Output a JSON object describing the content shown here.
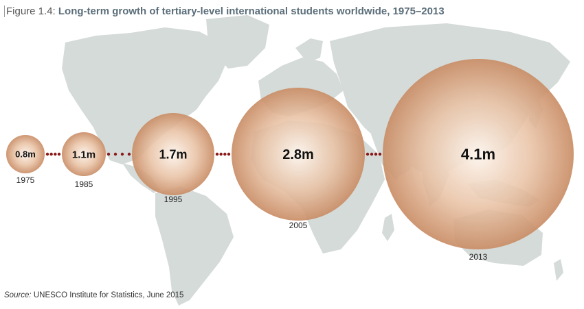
{
  "figure": {
    "label": "Figure 1.4: ",
    "title": "Long-term growth of tertiary-level international students worldwide, 1975–2013"
  },
  "source": {
    "label": "Source:",
    "text": " UNESCO Institute for Statistics, June 2015"
  },
  "colors": {
    "bubble_center": "#fbf3ec",
    "bubble_edge": "#cf9a76",
    "connector_dots": "#8b1a1a",
    "map": "#d5dbd9"
  },
  "chart_data": {
    "type": "bubble",
    "unit": "million students",
    "categories": [
      "1975",
      "1985",
      "1995",
      "2005",
      "2013"
    ],
    "values": [
      0.8,
      1.1,
      1.7,
      2.8,
      4.1
    ],
    "labels": [
      "0.8m",
      "1.1m",
      "1.7m",
      "2.8m",
      "4.1m"
    ]
  }
}
